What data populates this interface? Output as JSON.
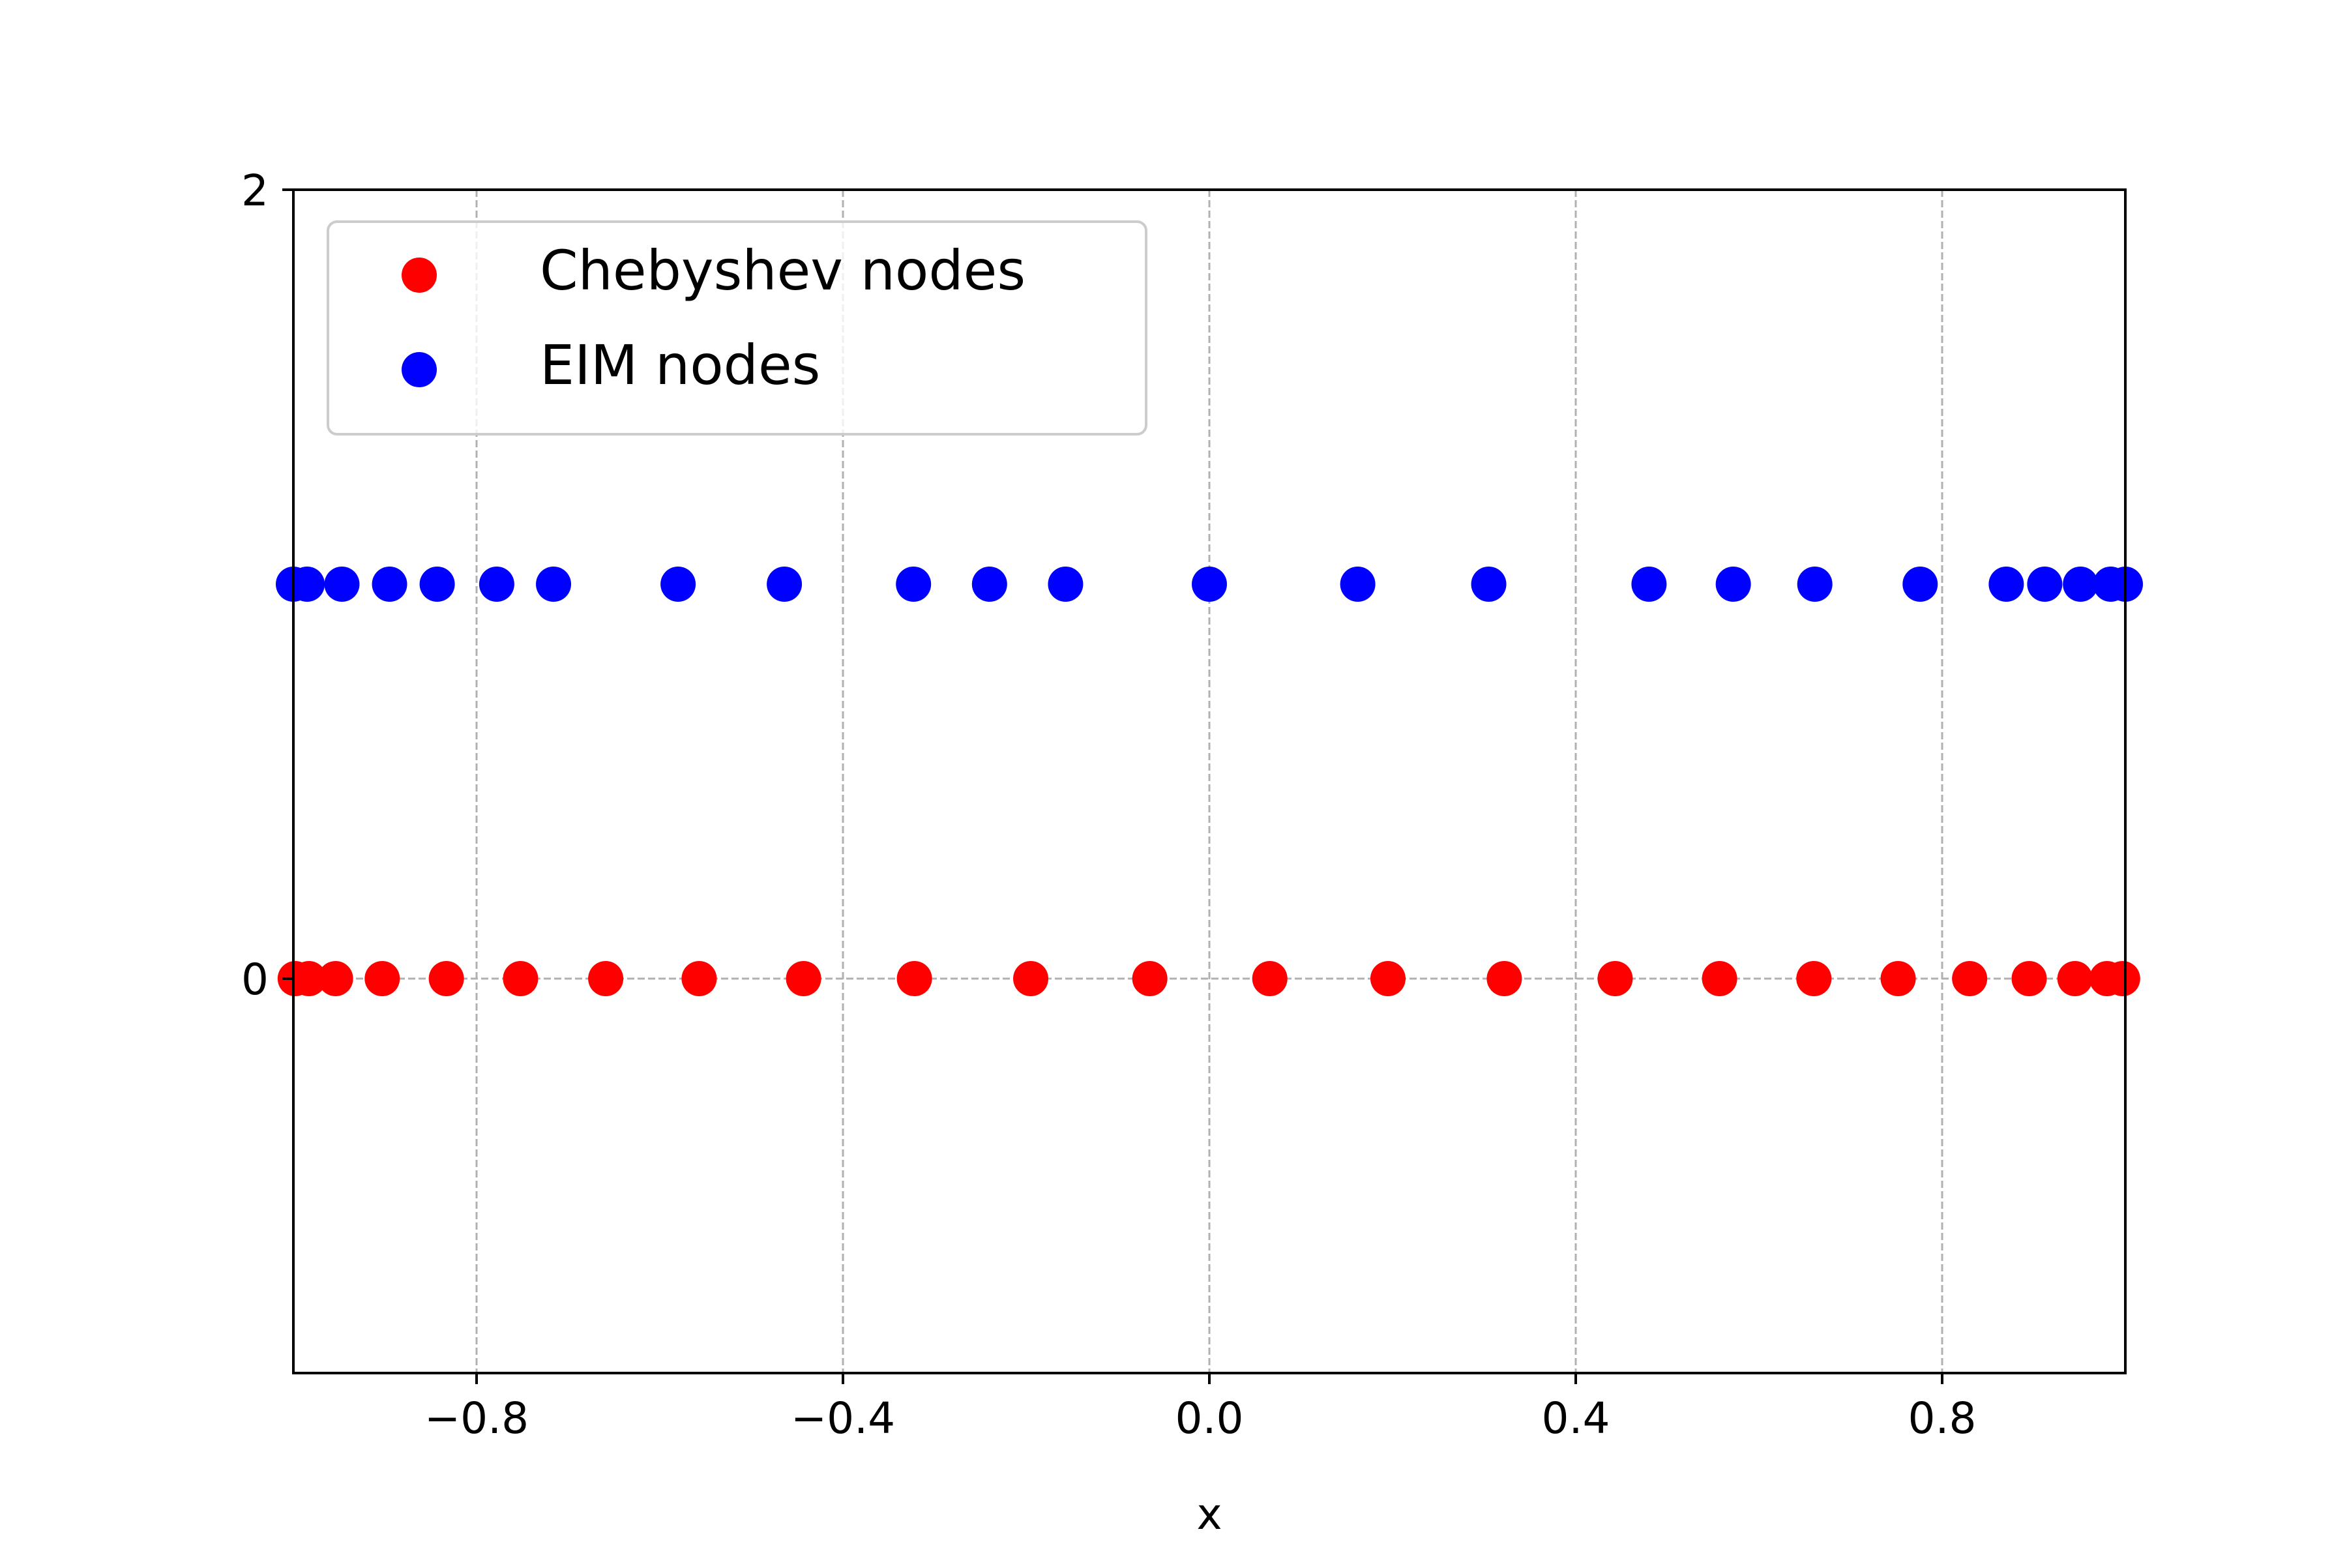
{
  "chart_data": {
    "type": "scatter",
    "title": "",
    "xlabel": "x",
    "ylabel": "",
    "xlim": [
      -1.0,
      1.0
    ],
    "ylim": [
      -1.0,
      2.0
    ],
    "x_ticks": [
      -0.8,
      -0.4,
      0.0,
      0.4,
      0.8
    ],
    "x_tick_labels": [
      "−0.8",
      "−0.4",
      "0.0",
      "0.4",
      "0.8"
    ],
    "y_ticks": [
      0,
      2
    ],
    "y_tick_labels": [
      "0",
      "2"
    ],
    "grid": "x-major, dashed, plus dashed line at y = 0",
    "legend": {
      "location": "upper-left",
      "entries": [
        "Chebyshev nodes",
        "EIM nodes"
      ]
    },
    "series": [
      {
        "name": "Chebyshev nodes",
        "color": "#ff0000",
        "y": 0,
        "x": [
          -0.998,
          -0.983,
          -0.954,
          -0.903,
          -0.833,
          -0.752,
          -0.659,
          -0.557,
          -0.443,
          -0.322,
          -0.195,
          -0.065,
          0.066,
          0.195,
          0.322,
          0.443,
          0.557,
          0.66,
          0.752,
          0.83,
          0.895,
          0.945,
          0.98,
          0.997
        ]
      },
      {
        "name": "EIM nodes",
        "color": "#0000ff",
        "y": 1,
        "x": [
          -1.0,
          -0.985,
          -0.947,
          -0.895,
          -0.843,
          -0.778,
          -0.716,
          -0.58,
          -0.464,
          -0.323,
          -0.24,
          -0.157,
          0.0,
          0.162,
          0.305,
          0.48,
          0.572,
          0.661,
          0.776,
          0.87,
          0.912,
          0.951,
          0.984,
          1.0
        ]
      }
    ]
  }
}
